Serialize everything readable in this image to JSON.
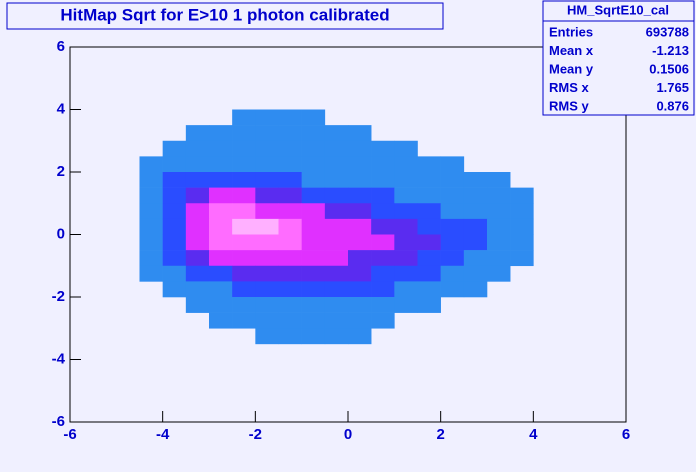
{
  "chart_data": {
    "type": "heatmap",
    "title": "HitMap Sqrt for E>10 1 photon calibrated",
    "xlim": [
      -6,
      6
    ],
    "ylim": [
      -6,
      6
    ],
    "xticks": [
      -6,
      -4,
      -2,
      0,
      2,
      4,
      6
    ],
    "yticks": [
      -6,
      -4,
      -2,
      0,
      2,
      4,
      6
    ],
    "xbins": [
      -5,
      -4.5,
      -4,
      -3.5,
      -3,
      -2.5,
      -2,
      -1.5,
      -1,
      -0.5,
      0,
      0.5,
      1,
      1.5,
      2,
      2.5,
      3,
      3.5,
      4,
      4.5
    ],
    "ybins": [
      4,
      3.5,
      3,
      2.5,
      2,
      1.5,
      1,
      0.5,
      0,
      -0.5,
      -1,
      -1.5,
      -2,
      -2.5,
      -3,
      -3.5
    ],
    "palette": [
      "#2f8cf0",
      "#2a4dff",
      "#5a2cf0",
      "#e030ff",
      "#ff6cff",
      "#ffb0ff"
    ],
    "z": [
      [
        0,
        0,
        0,
        0,
        0,
        1,
        1,
        1,
        1,
        0,
        0,
        0,
        0,
        0,
        0,
        0,
        0,
        0,
        0
      ],
      [
        0,
        0,
        0,
        1,
        1,
        1,
        1,
        1,
        1,
        1,
        1,
        0,
        0,
        0,
        0,
        0,
        0,
        0,
        0
      ],
      [
        0,
        0,
        1,
        1,
        1,
        1,
        1,
        1,
        1,
        1,
        1,
        1,
        1,
        0,
        0,
        0,
        0,
        0,
        0
      ],
      [
        0,
        1,
        1,
        1,
        1,
        1,
        1,
        1,
        1,
        1,
        1,
        1,
        1,
        1,
        1,
        0,
        0,
        0,
        0
      ],
      [
        0,
        1,
        2,
        2,
        2,
        2,
        2,
        2,
        1,
        1,
        1,
        1,
        1,
        1,
        1,
        1,
        1,
        0,
        0
      ],
      [
        0,
        1,
        2,
        3,
        4,
        4,
        3,
        3,
        2,
        2,
        2,
        2,
        1,
        1,
        1,
        1,
        1,
        1,
        0
      ],
      [
        0,
        1,
        2,
        4,
        5,
        5,
        4,
        4,
        4,
        3,
        3,
        2,
        2,
        2,
        1,
        1,
        1,
        1,
        0
      ],
      [
        0,
        1,
        2,
        4,
        5,
        6,
        6,
        5,
        4,
        4,
        4,
        3,
        3,
        2,
        2,
        2,
        1,
        1,
        0
      ],
      [
        0,
        1,
        2,
        4,
        5,
        5,
        5,
        5,
        4,
        4,
        4,
        4,
        3,
        3,
        2,
        2,
        1,
        1,
        0
      ],
      [
        0,
        1,
        2,
        3,
        4,
        4,
        4,
        4,
        4,
        4,
        3,
        3,
        3,
        2,
        2,
        1,
        1,
        1,
        0
      ],
      [
        0,
        1,
        1,
        2,
        2,
        3,
        3,
        3,
        3,
        3,
        3,
        2,
        2,
        2,
        1,
        1,
        1,
        0,
        0
      ],
      [
        0,
        0,
        1,
        1,
        1,
        2,
        2,
        2,
        2,
        2,
        2,
        2,
        1,
        1,
        1,
        1,
        0,
        0,
        0
      ],
      [
        0,
        0,
        0,
        1,
        1,
        1,
        1,
        1,
        1,
        1,
        1,
        1,
        1,
        1,
        0,
        0,
        0,
        0,
        0
      ],
      [
        0,
        0,
        0,
        0,
        1,
        1,
        1,
        1,
        1,
        1,
        1,
        1,
        0,
        0,
        0,
        0,
        0,
        0,
        0
      ],
      [
        0,
        0,
        0,
        0,
        0,
        0,
        1,
        1,
        1,
        1,
        1,
        0,
        0,
        0,
        0,
        0,
        0,
        0,
        0
      ]
    ],
    "stats": {
      "name": "HM_SqrtE10_cal",
      "rows": [
        [
          "Entries",
          693788
        ],
        [
          "Mean x",
          -1.213
        ],
        [
          "Mean y",
          0.1506
        ],
        [
          "RMS x",
          1.765
        ],
        [
          "RMS y",
          0.876
        ]
      ]
    }
  }
}
